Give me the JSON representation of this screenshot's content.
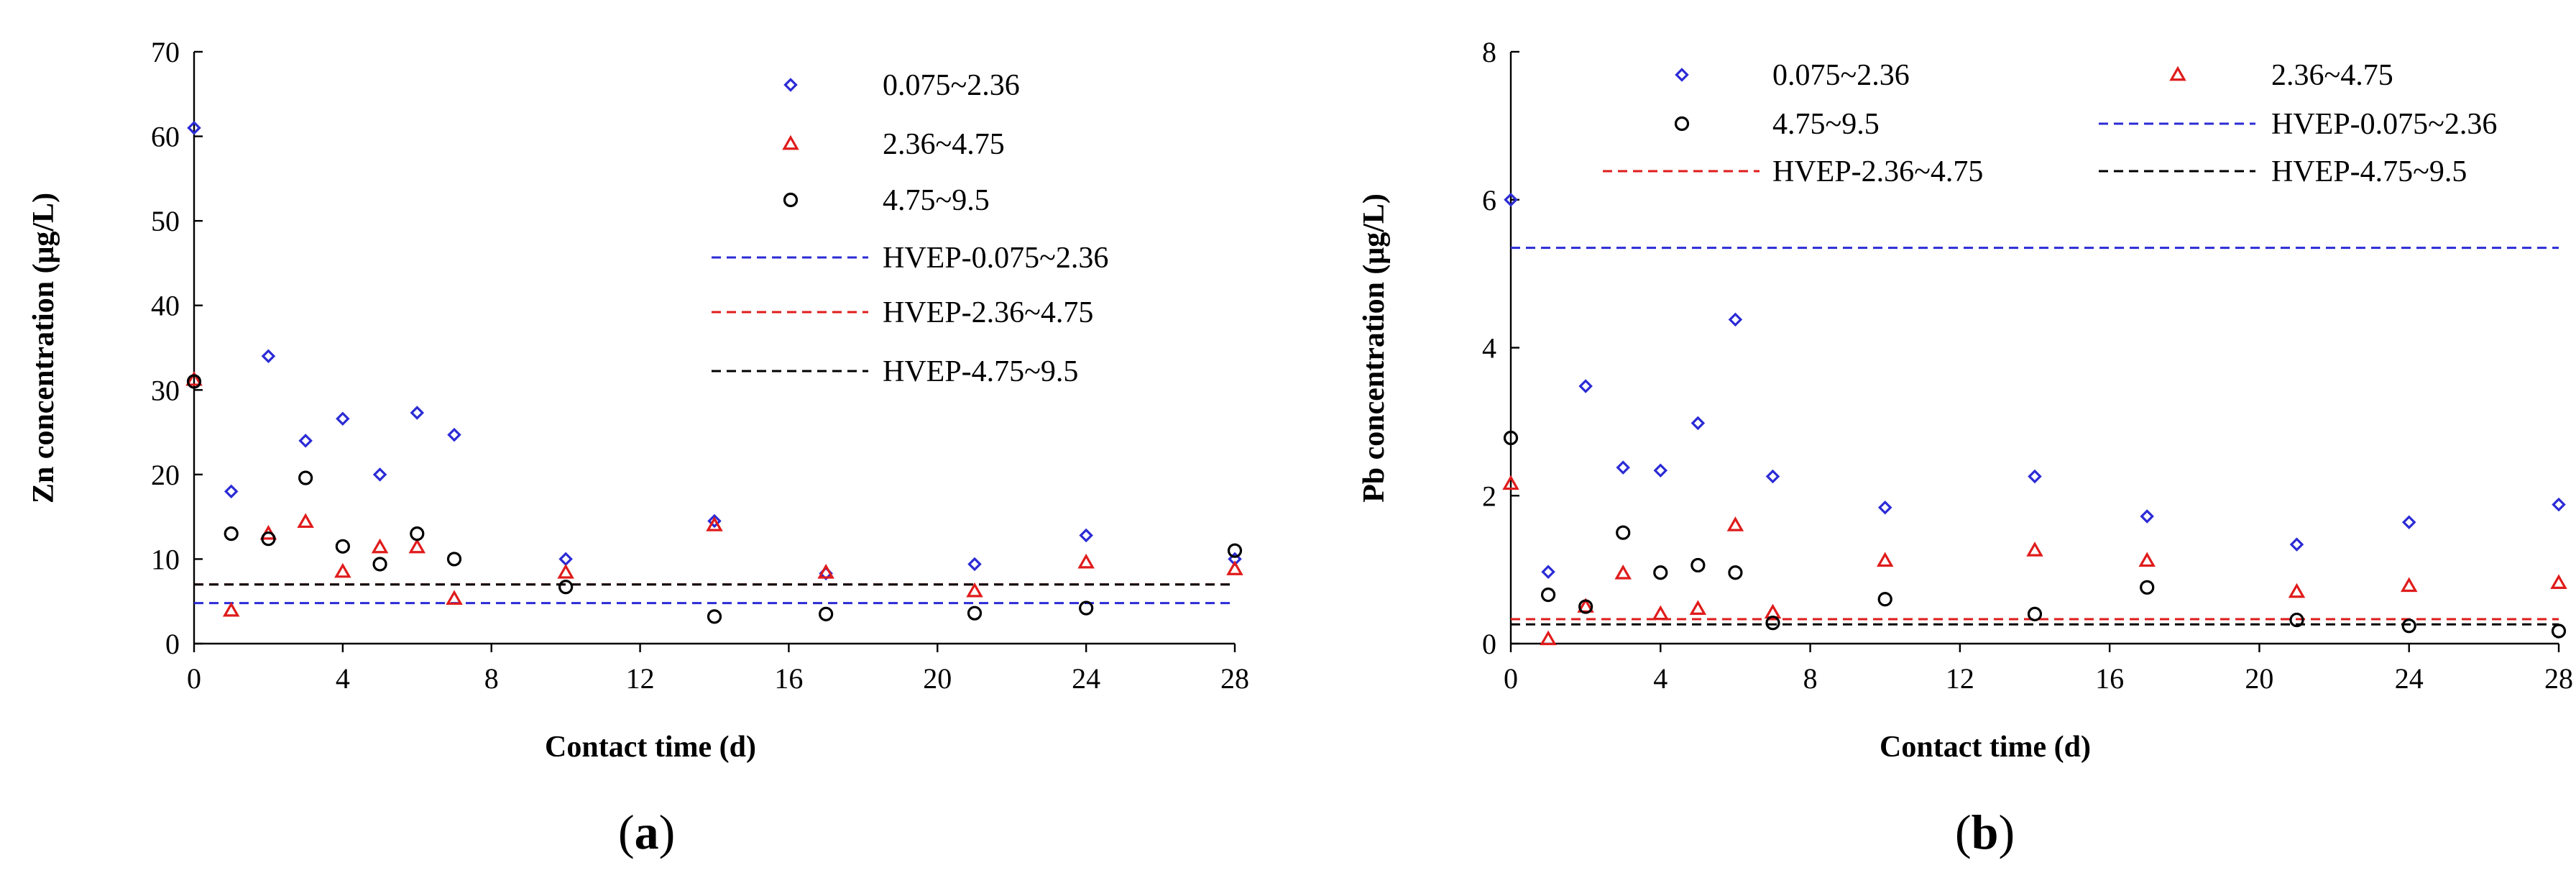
{
  "chart_data": [
    {
      "type": "scatter",
      "panel_label": "a",
      "title": "",
      "xlabel": "Contact time (d)",
      "ylabel": "Zn concentration (μg/L)",
      "xlim": [
        0,
        28
      ],
      "ylim": [
        0,
        70
      ],
      "xticks": [
        "0",
        "4",
        "8",
        "12",
        "16",
        "20",
        "24",
        "28"
      ],
      "yticks": [
        "0",
        "10",
        "20",
        "30",
        "40",
        "50",
        "60",
        "70"
      ],
      "grid": false,
      "legend_position": "top-right",
      "legend_layout": "one-column",
      "legend_order": [
        "0.075~2.36",
        "2.36~4.75",
        "4.75~9.5",
        "HVEP-0.075~2.36",
        "HVEP-2.36~4.75",
        "HVEP-4.75~9.5"
      ],
      "series": [
        {
          "name": "0.075~2.36",
          "marker": "diamond",
          "color": "#2b2bd6",
          "x": [
            0,
            1,
            2,
            3,
            4,
            5,
            6,
            7,
            10,
            14,
            17,
            21,
            24,
            28
          ],
          "y": [
            61,
            18,
            34,
            24,
            26.6,
            20,
            27.3,
            24.7,
            10,
            14.5,
            8.3,
            9.4,
            12.8,
            10
          ]
        },
        {
          "name": "2.36~4.75",
          "marker": "triangle",
          "color": "#e01b1b",
          "x": [
            0,
            1,
            2,
            3,
            4,
            5,
            6,
            7,
            10,
            14,
            17,
            21,
            24,
            28
          ],
          "y": [
            31.2,
            3.9,
            13,
            14.4,
            8.5,
            11.4,
            11.4,
            5.3,
            8.4,
            14,
            8.4,
            6.2,
            9.6,
            8.8
          ]
        },
        {
          "name": "4.75~9.5",
          "marker": "circle",
          "color": "#000000",
          "x": [
            0,
            1,
            2,
            3,
            4,
            5,
            6,
            7,
            10,
            14,
            17,
            21,
            24,
            28
          ],
          "y": [
            31,
            13,
            12.4,
            19.6,
            11.5,
            9.4,
            13,
            10,
            6.7,
            3.2,
            3.5,
            3.6,
            4.2,
            11
          ]
        }
      ],
      "lines": [
        {
          "name": "HVEP-0.075~2.36",
          "y": 4.8,
          "color": "#2b2bd6",
          "dash": "dashed"
        },
        {
          "name": "HVEP-2.36~4.75",
          "y": 7,
          "color": "#e01b1b",
          "dash": "dashed"
        },
        {
          "name": "HVEP-4.75~9.5",
          "y": 7,
          "color": "#000000",
          "dash": "dashed"
        }
      ]
    },
    {
      "type": "scatter",
      "panel_label": "b",
      "title": "",
      "xlabel": "Contact time (d)",
      "ylabel": "Pb concentration (μg/L)",
      "xlim": [
        0,
        28
      ],
      "ylim": [
        0,
        8
      ],
      "xticks": [
        "0",
        "4",
        "8",
        "12",
        "16",
        "20",
        "24",
        "28"
      ],
      "yticks": [
        "0",
        "2",
        "4",
        "6",
        "8"
      ],
      "grid": false,
      "legend_position": "top",
      "legend_layout": "two-column",
      "legend_order": [
        "0.075~2.36",
        "2.36~4.75",
        "4.75~9.5",
        "HVEP-0.075~2.36",
        "HVEP-2.36~4.75",
        "HVEP-4.75~9.5"
      ],
      "series": [
        {
          "name": "0.075~2.36",
          "marker": "diamond",
          "color": "#2b2bd6",
          "x": [
            0,
            1,
            2,
            3,
            4,
            5,
            6,
            7,
            10,
            14,
            17,
            21,
            24,
            28
          ],
          "y": [
            6,
            0.97,
            3.48,
            2.38,
            2.34,
            2.98,
            4.38,
            2.26,
            1.84,
            2.26,
            1.72,
            1.34,
            1.64,
            1.88
          ]
        },
        {
          "name": "2.36~4.75",
          "marker": "triangle",
          "color": "#e01b1b",
          "x": [
            0,
            1,
            2,
            3,
            4,
            5,
            6,
            7,
            10,
            14,
            17,
            21,
            24,
            28
          ],
          "y": [
            2.16,
            0.06,
            0.5,
            0.95,
            0.4,
            0.47,
            1.6,
            0.42,
            1.12,
            1.26,
            1.12,
            0.7,
            0.78,
            0.82
          ]
        },
        {
          "name": "4.75~9.5",
          "marker": "circle",
          "color": "#000000",
          "x": [
            0,
            1,
            2,
            3,
            4,
            5,
            6,
            7,
            10,
            14,
            17,
            21,
            24,
            28
          ],
          "y": [
            2.78,
            0.66,
            0.5,
            1.5,
            0.96,
            1.06,
            0.96,
            0.28,
            0.6,
            0.4,
            0.76,
            0.32,
            0.24,
            0.17
          ]
        }
      ],
      "lines": [
        {
          "name": "HVEP-0.075~2.36",
          "y": 5.35,
          "color": "#2b2bd6",
          "dash": "dashed"
        },
        {
          "name": "HVEP-2.36~4.75",
          "y": 0.33,
          "color": "#e01b1b",
          "dash": "dashed"
        },
        {
          "name": "HVEP-4.75~9.5",
          "y": 0.26,
          "color": "#000000",
          "dash": "dashed"
        }
      ]
    }
  ]
}
